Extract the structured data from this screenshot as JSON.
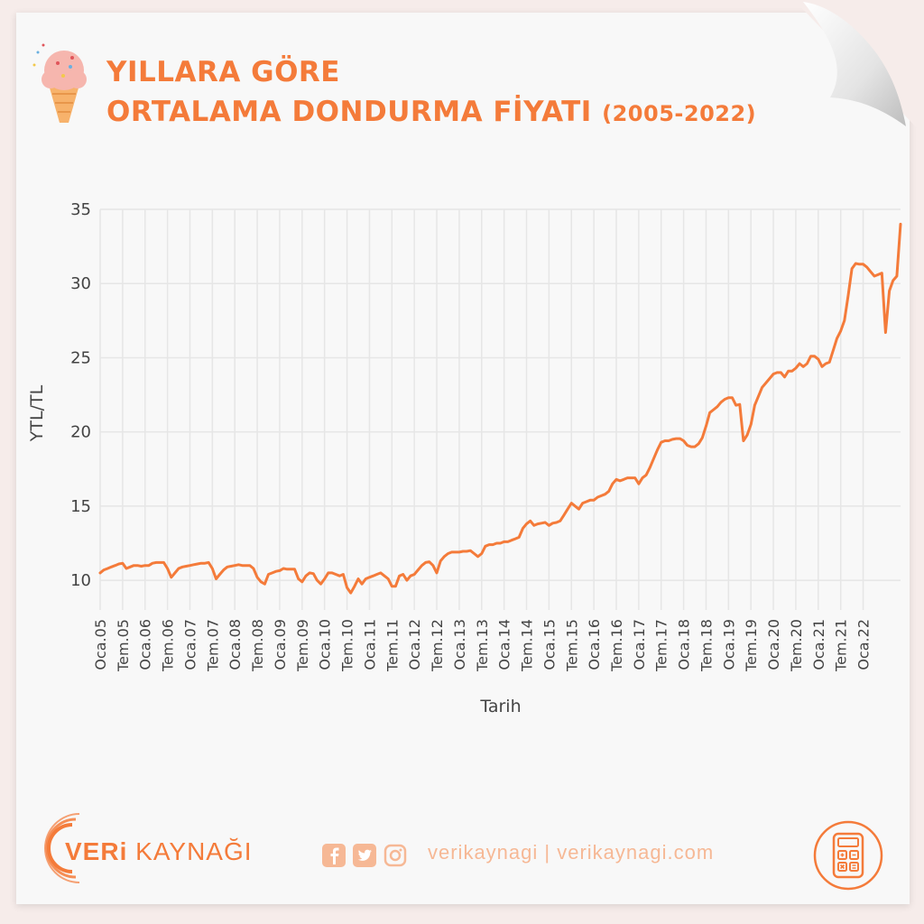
{
  "header": {
    "title_line1": "YILLARA GÖRE",
    "title_line2": "ORTALAMA DONDURMA FİYATI",
    "title_years": "(2005-2022)",
    "icon": "ice-cream-cone-icon"
  },
  "footer": {
    "brand_bold": "VERi",
    "brand_rest": " KAYNAĞI",
    "social_text": "verikaynagi | verikaynagi.com",
    "icons": [
      "facebook-icon",
      "twitter-icon",
      "instagram-icon",
      "calculator-icon"
    ]
  },
  "colors": {
    "line": "#f47b3a",
    "accent": "#f47b3a",
    "grid": "#e6e6e6",
    "axis_text": "#444444",
    "paper": "#f8f8f8"
  },
  "chart_data": {
    "type": "line",
    "title": "",
    "xlabel": "Tarih",
    "ylabel": "YTL/TL",
    "ylim": [
      8,
      35
    ],
    "yticks": [
      10,
      15,
      20,
      25,
      30,
      35
    ],
    "grid": true,
    "legend": "none",
    "x_tick_labels": [
      "Oca.05",
      "Tem.05",
      "Oca.06",
      "Tem.06",
      "Oca.07",
      "Tem.07",
      "Oca.08",
      "Tem.08",
      "Oca.09",
      "Tem.09",
      "Oca.10",
      "Tem.10",
      "Oca.11",
      "Tem.11",
      "Oca.12",
      "Tem.12",
      "Oca.13",
      "Tem.13",
      "Oca.14",
      "Tem.14",
      "Oca.15",
      "Tem.15",
      "Oca.16",
      "Tem.16",
      "Oca.17",
      "Tem.17",
      "Oca.18",
      "Tem.18",
      "Oca.19",
      "Tem.19",
      "Oca.20",
      "Tem.20",
      "Oca.21",
      "Tem.21",
      "Oca.22"
    ],
    "series": [
      {
        "values": [
          10.5,
          10.7,
          10.8,
          10.9,
          11.0,
          11.1,
          11.15,
          10.8,
          10.9,
          11.0,
          11.0,
          10.95,
          11.0,
          11.0,
          11.15,
          11.2,
          11.2,
          11.2,
          10.8,
          10.2,
          10.5,
          10.8,
          10.9,
          10.95,
          11.0,
          11.05,
          11.1,
          11.15,
          11.15,
          11.2,
          10.8,
          10.1,
          10.4,
          10.7,
          10.9,
          10.95,
          11.0,
          11.05,
          11.0,
          11.0,
          11.0,
          10.8,
          10.2,
          9.9,
          9.75,
          10.4,
          10.5,
          10.6,
          10.65,
          10.8,
          10.75,
          10.75,
          10.75,
          10.1,
          9.9,
          10.3,
          10.5,
          10.45,
          10.0,
          9.75,
          10.1,
          10.5,
          10.5,
          10.4,
          10.3,
          10.4,
          9.5,
          9.15,
          9.6,
          10.1,
          9.75,
          10.1,
          10.2,
          10.3,
          10.4,
          10.5,
          10.3,
          10.1,
          9.6,
          9.6,
          10.3,
          10.4,
          10.0,
          10.3,
          10.4,
          10.7,
          11.0,
          11.2,
          11.25,
          11.0,
          10.5,
          11.3,
          11.6,
          11.8,
          11.9,
          11.9,
          11.9,
          11.95,
          11.95,
          12.0,
          11.8,
          11.6,
          11.8,
          12.3,
          12.4,
          12.4,
          12.5,
          12.5,
          12.6,
          12.6,
          12.7,
          12.8,
          12.9,
          13.5,
          13.8,
          14.0,
          13.7,
          13.8,
          13.85,
          13.9,
          13.7,
          13.85,
          13.9,
          14.0,
          14.4,
          14.8,
          15.2,
          15.0,
          14.8,
          15.2,
          15.3,
          15.4,
          15.4,
          15.6,
          15.7,
          15.8,
          16.0,
          16.5,
          16.8,
          16.7,
          16.8,
          16.9,
          16.9,
          16.9,
          16.5,
          16.9,
          17.1,
          17.6,
          18.2,
          18.8,
          19.3,
          19.4,
          19.4,
          19.5,
          19.55,
          19.55,
          19.4,
          19.1,
          19.0,
          19.0,
          19.2,
          19.6,
          20.4,
          21.3,
          21.5,
          21.7,
          22.0,
          22.2,
          22.3,
          22.3,
          21.8,
          21.85,
          19.4,
          19.8,
          20.5,
          21.8,
          22.4,
          23.0,
          23.3,
          23.6,
          23.9,
          24.0,
          24.0,
          23.7,
          24.1,
          24.1,
          24.3,
          24.6,
          24.4,
          24.6,
          25.1,
          25.1,
          24.9,
          24.4,
          24.6,
          24.7,
          25.5,
          26.3,
          26.8,
          27.5,
          29.2,
          31.0,
          31.35,
          31.3,
          31.3,
          31.1,
          30.8,
          30.5,
          30.6,
          30.7,
          26.7,
          29.5,
          30.2,
          30.5,
          34.0
        ]
      }
    ]
  }
}
